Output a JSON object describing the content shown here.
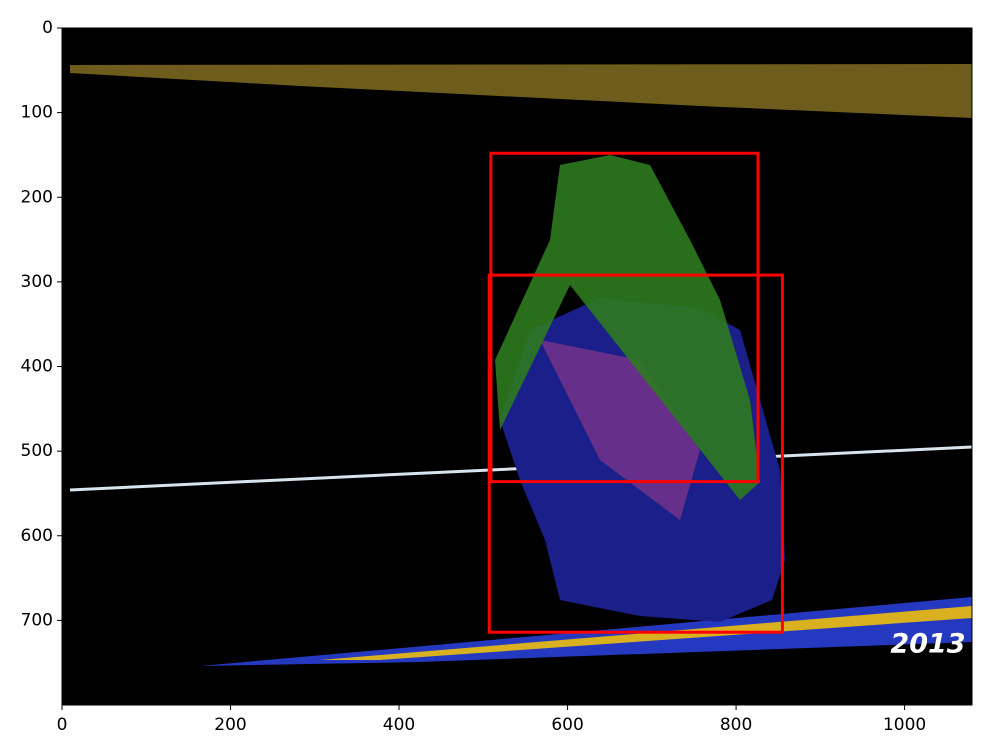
{
  "chart_data": {
    "type": "image",
    "annotation": "2013",
    "xlim": [
      0,
      1080
    ],
    "ylim": [
      800,
      0
    ],
    "xticks": [
      0,
      200,
      400,
      600,
      800,
      1000
    ],
    "yticks": [
      0,
      100,
      200,
      300,
      400,
      500,
      600,
      700
    ],
    "box_color": "#ff0000",
    "boxes": [
      {
        "x0": 509,
        "y0": 148,
        "x1": 826,
        "y1": 536
      },
      {
        "x0": 507,
        "y0": 292,
        "x1": 855,
        "y1": 714
      }
    ]
  }
}
